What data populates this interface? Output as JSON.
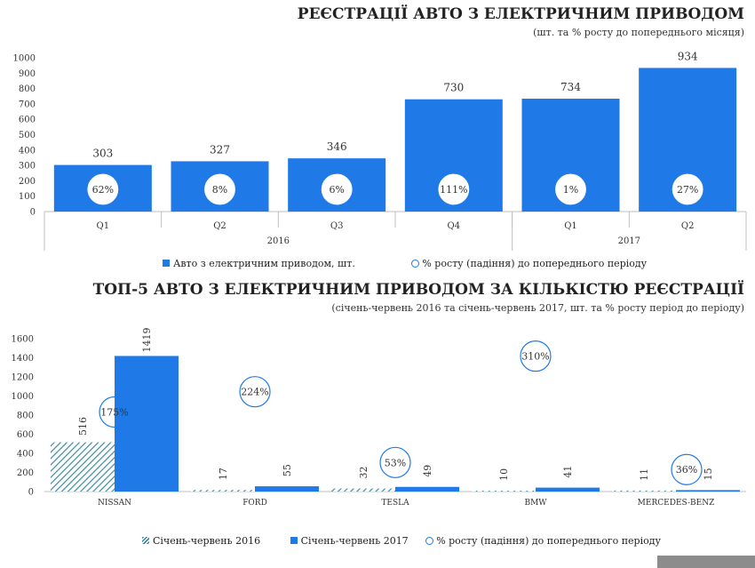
{
  "chart_data": [
    {
      "type": "bar",
      "title": "РЕЄСТРАЦІЇ АВТО З ЕЛЕКТРИЧНИМ ПРИВОДОМ",
      "subtitle": "(шт. та % росту до попереднього місяця)",
      "categories": [
        "Q1",
        "Q2",
        "Q3",
        "Q4",
        "Q1",
        "Q2"
      ],
      "groups": [
        {
          "label": "2016",
          "span": 4
        },
        {
          "label": "2017",
          "span": 2
        }
      ],
      "series": [
        {
          "name": "Авто з електричним приводом, шт.",
          "values": [
            303,
            327,
            346,
            730,
            734,
            934
          ]
        }
      ],
      "growth_name": "% росту (падіння) до попереднього періоду",
      "growth_labels": [
        "62%",
        "8%",
        "6%",
        "111%",
        "1%",
        "27%"
      ],
      "yticks": [
        "1000",
        "900",
        "800",
        "700",
        "600",
        "500",
        "400",
        "300",
        "200",
        "100",
        "0"
      ],
      "ylim": [
        0,
        1000
      ],
      "colors": {
        "bar": "#1f7ae8",
        "circle": "#1f7ae8"
      }
    },
    {
      "type": "bar",
      "title": "ТОП-5 АВТО З ЕЛЕКТРИЧНИМ ПРИВОДОМ ЗА КІЛЬКІСТЮ РЕЄСТРАЦІЇ",
      "subtitle": "(січень-червень 2016 та січень-червень 2017, шт. та % росту період до періоду)",
      "categories": [
        "NISSAN",
        "FORD",
        "TESLA",
        "BMW",
        "MERCEDES-BENZ"
      ],
      "series": [
        {
          "name": "Січень-червень 2016",
          "values": [
            516,
            17,
            32,
            10,
            11
          ]
        },
        {
          "name": "Січень-червень 2017",
          "values": [
            1419,
            55,
            49,
            41,
            15
          ]
        }
      ],
      "growth_name": "% росту (падіння) до попереднього періоду",
      "growth": [
        {
          "label": "175%",
          "value": 175
        },
        {
          "label": "224%",
          "value": 224
        },
        {
          "label": "53%",
          "value": 53
        },
        {
          "label": "310%",
          "value": 310
        },
        {
          "label": "36%",
          "value": 36
        }
      ],
      "yticks": [
        "1600",
        "1400",
        "1200",
        "1000",
        "800",
        "600",
        "400",
        "200",
        "0"
      ],
      "ylim": [
        0,
        1600
      ],
      "colors": {
        "hatch": "#3d8aa3",
        "solid": "#1f7ae8",
        "circle": "#1f7ae8"
      }
    }
  ]
}
